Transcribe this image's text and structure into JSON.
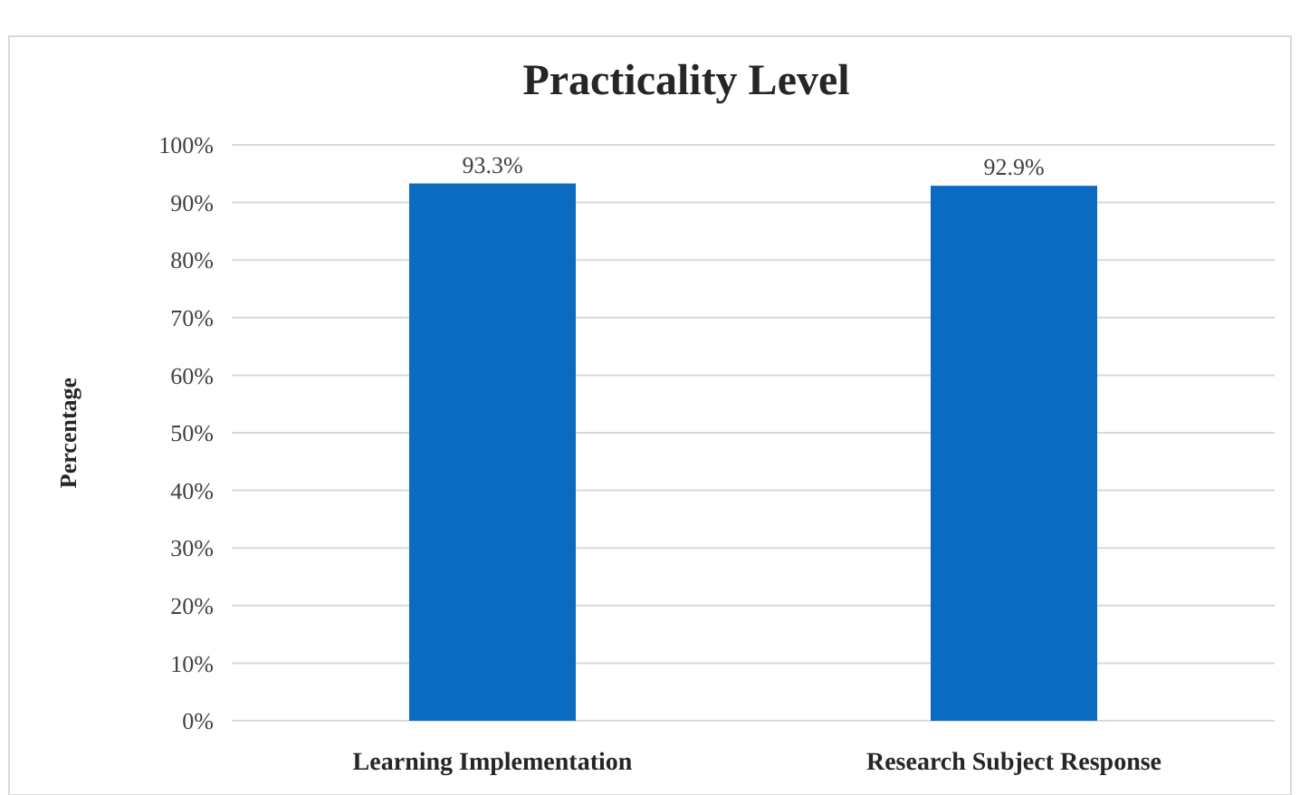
{
  "chart_data": {
    "type": "bar",
    "title": "Practicality Level",
    "ylabel": "Percentage",
    "categories": [
      "Learning Implementation",
      "Research Subject Response"
    ],
    "values": [
      93.3,
      92.9
    ],
    "color": "#0b6bc1",
    "value_labels": [
      "93.3%",
      "92.9%"
    ],
    "ylim": [
      0,
      100
    ],
    "yticks": [
      {
        "value": 0,
        "label": "0%"
      },
      {
        "value": 10,
        "label": "10%"
      },
      {
        "value": 20,
        "label": "20%"
      },
      {
        "value": 30,
        "label": "30%"
      },
      {
        "value": 40,
        "label": "40%"
      },
      {
        "value": 50,
        "label": "50%"
      },
      {
        "value": 60,
        "label": "60%"
      },
      {
        "value": 70,
        "label": "70%"
      },
      {
        "value": 80,
        "label": "80%"
      },
      {
        "value": 90,
        "label": "90%"
      },
      {
        "value": 100,
        "label": "100%"
      }
    ],
    "grid": "y"
  }
}
